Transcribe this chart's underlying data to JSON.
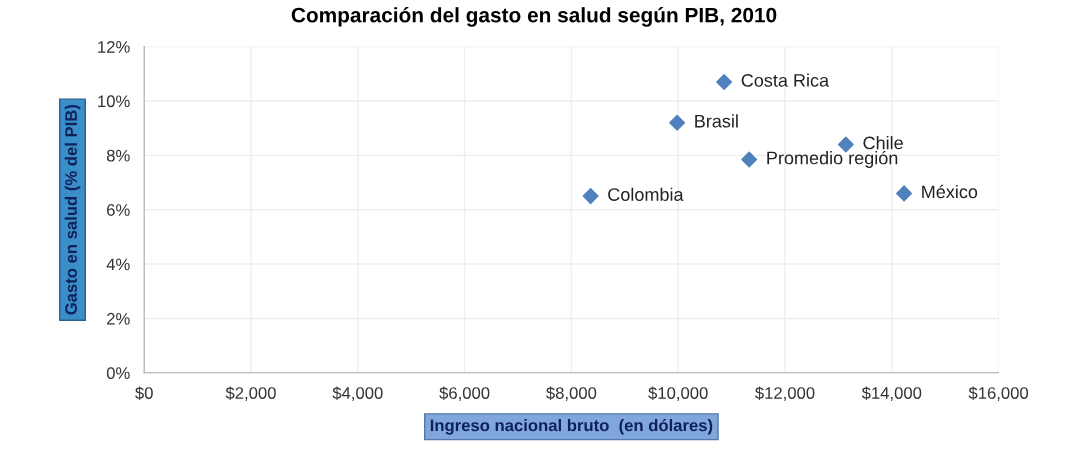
{
  "chart_data": {
    "type": "scatter",
    "title": "Comparación del gasto en salud según PIB, 2010",
    "xlabel": "Ingreso nacional bruto  (en dólares)",
    "ylabel": "Gasto en salud (% del PIB)",
    "series": [
      {
        "color": "#4f81bd",
        "x": [
          10860,
          9980,
          13140,
          11330,
          8360,
          14230
        ],
        "values": [
          10.7,
          9.2,
          8.4,
          7.85,
          6.5,
          6.6
        ]
      }
    ],
    "annotations": [
      {
        "text": "Costa Rica",
        "x": 10860,
        "y": 10.7
      },
      {
        "text": "Brasil",
        "x": 9980,
        "y": 9.2
      },
      {
        "text": "Chile",
        "x": 13140,
        "y": 8.4
      },
      {
        "text": "Promedio región",
        "x": 11330,
        "y": 7.85
      },
      {
        "text": "Colombia",
        "x": 8360,
        "y": 6.5
      },
      {
        "text": "México",
        "x": 14230,
        "y": 6.6
      }
    ],
    "xlim": [
      0,
      16000
    ],
    "xticks": [
      {
        "value": 0,
        "label": "$0"
      },
      {
        "value": 2000,
        "label": "$2,000"
      },
      {
        "value": 4000,
        "label": "$4,000"
      },
      {
        "value": 6000,
        "label": "$6,000"
      },
      {
        "value": 8000,
        "label": "$8,000"
      },
      {
        "value": 10000,
        "label": "$10,000"
      },
      {
        "value": 12000,
        "label": "$12,000"
      },
      {
        "value": 14000,
        "label": "$14,000"
      },
      {
        "value": 16000,
        "label": "$16,000"
      }
    ],
    "ylim": [
      0,
      12
    ],
    "yticks": [
      {
        "value": 0,
        "label": "0%"
      },
      {
        "value": 2,
        "label": "2%"
      },
      {
        "value": 4,
        "label": "4%"
      },
      {
        "value": 6,
        "label": "6%"
      },
      {
        "value": 8,
        "label": "8%"
      },
      {
        "value": 10,
        "label": "10%"
      },
      {
        "value": 12,
        "label": "12%"
      }
    ],
    "grid": true,
    "marker": "diamond"
  }
}
